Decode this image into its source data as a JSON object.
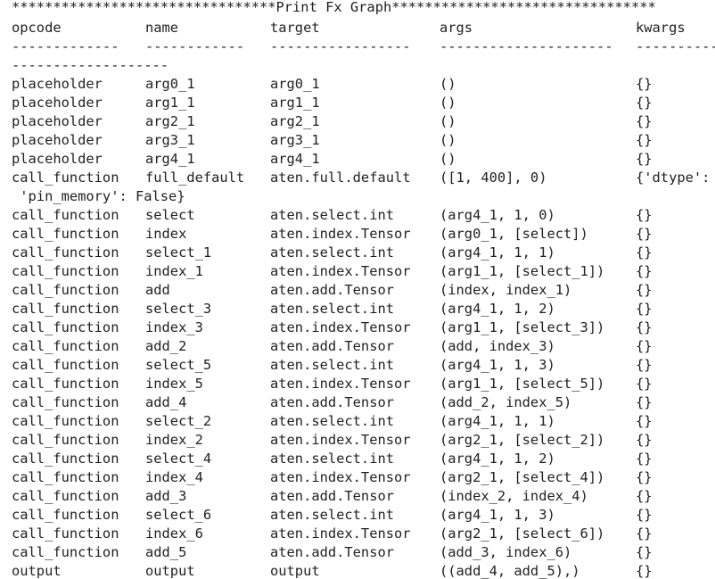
{
  "banner": "********************************Print Fx Graph********************************",
  "headers": {
    "opcode": "opcode",
    "name": "name",
    "target": "target",
    "args": "args",
    "kwargs": "kwargs"
  },
  "separators": {
    "opcode": "-------------",
    "name": "------------",
    "target": "-----------------",
    "args": "---------------------",
    "kwargs": "----------",
    "kwargs_wrap": "-------------------"
  },
  "rows": [
    {
      "opcode": "placeholder",
      "name": "arg0_1",
      "target": "arg0_1",
      "args": "()",
      "kwargs": "{}"
    },
    {
      "opcode": "placeholder",
      "name": "arg1_1",
      "target": "arg1_1",
      "args": "()",
      "kwargs": "{}"
    },
    {
      "opcode": "placeholder",
      "name": "arg2_1",
      "target": "arg2_1",
      "args": "()",
      "kwargs": "{}"
    },
    {
      "opcode": "placeholder",
      "name": "arg3_1",
      "target": "arg3_1",
      "args": "()",
      "kwargs": "{}"
    },
    {
      "opcode": "placeholder",
      "name": "arg4_1",
      "target": "arg4_1",
      "args": "()",
      "kwargs": "{}"
    },
    {
      "opcode": "call_function",
      "name": "full_default",
      "target": "aten.full.default",
      "args": "([1, 400], 0)",
      "kwargs": "{'dtype':",
      "wrap": " 'pin_memory': False}"
    },
    {
      "opcode": "call_function",
      "name": "select",
      "target": "aten.select.int",
      "args": "(arg4_1, 1, 0)",
      "kwargs": "{}"
    },
    {
      "opcode": "call_function",
      "name": "index",
      "target": "aten.index.Tensor",
      "args": "(arg0_1, [select])",
      "kwargs": "{}"
    },
    {
      "opcode": "call_function",
      "name": "select_1",
      "target": "aten.select.int",
      "args": "(arg4_1, 1, 1)",
      "kwargs": "{}"
    },
    {
      "opcode": "call_function",
      "name": "index_1",
      "target": "aten.index.Tensor",
      "args": "(arg1_1, [select_1])",
      "kwargs": "{}"
    },
    {
      "opcode": "call_function",
      "name": "add",
      "target": "aten.add.Tensor",
      "args": "(index, index_1)",
      "kwargs": "{}"
    },
    {
      "opcode": "call_function",
      "name": "select_3",
      "target": "aten.select.int",
      "args": "(arg4_1, 1, 2)",
      "kwargs": "{}"
    },
    {
      "opcode": "call_function",
      "name": "index_3",
      "target": "aten.index.Tensor",
      "args": "(arg1_1, [select_3])",
      "kwargs": "{}"
    },
    {
      "opcode": "call_function",
      "name": "add_2",
      "target": "aten.add.Tensor",
      "args": "(add, index_3)",
      "kwargs": "{}"
    },
    {
      "opcode": "call_function",
      "name": "select_5",
      "target": "aten.select.int",
      "args": "(arg4_1, 1, 3)",
      "kwargs": "{}"
    },
    {
      "opcode": "call_function",
      "name": "index_5",
      "target": "aten.index.Tensor",
      "args": "(arg1_1, [select_5])",
      "kwargs": "{}"
    },
    {
      "opcode": "call_function",
      "name": "add_4",
      "target": "aten.add.Tensor",
      "args": "(add_2, index_5)",
      "kwargs": "{}"
    },
    {
      "opcode": "call_function",
      "name": "select_2",
      "target": "aten.select.int",
      "args": "(arg4_1, 1, 1)",
      "kwargs": "{}"
    },
    {
      "opcode": "call_function",
      "name": "index_2",
      "target": "aten.index.Tensor",
      "args": "(arg2_1, [select_2])",
      "kwargs": "{}"
    },
    {
      "opcode": "call_function",
      "name": "select_4",
      "target": "aten.select.int",
      "args": "(arg4_1, 1, 2)",
      "kwargs": "{}"
    },
    {
      "opcode": "call_function",
      "name": "index_4",
      "target": "aten.index.Tensor",
      "args": "(arg2_1, [select_4])",
      "kwargs": "{}"
    },
    {
      "opcode": "call_function",
      "name": "add_3",
      "target": "aten.add.Tensor",
      "args": "(index_2, index_4)",
      "kwargs": "{}"
    },
    {
      "opcode": "call_function",
      "name": "select_6",
      "target": "aten.select.int",
      "args": "(arg4_1, 1, 3)",
      "kwargs": "{}"
    },
    {
      "opcode": "call_function",
      "name": "index_6",
      "target": "aten.index.Tensor",
      "args": "(arg2_1, [select_6])",
      "kwargs": "{}"
    },
    {
      "opcode": "call_function",
      "name": "add_5",
      "target": "aten.add.Tensor",
      "args": "(add_3, index_6)",
      "kwargs": "{}"
    },
    {
      "opcode": "output",
      "name": "output",
      "target": "output",
      "args": "((add_4, add_5),)",
      "kwargs": "{}"
    }
  ]
}
